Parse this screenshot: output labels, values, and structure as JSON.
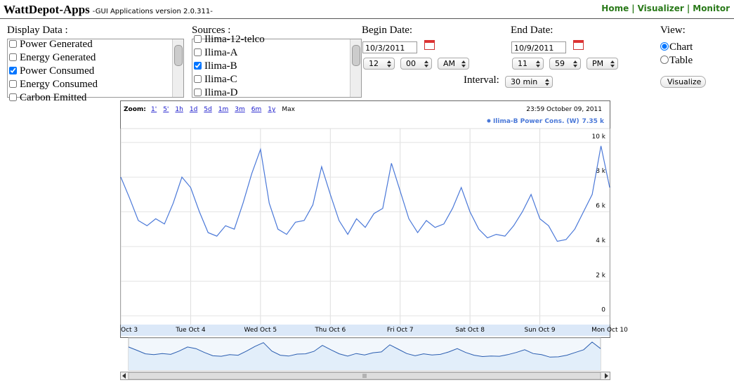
{
  "header": {
    "title": "WattDepot-Apps",
    "subtitle": "-GUI Applications version 2.0.311-",
    "links": [
      "Home",
      "Visualizer",
      "Monitor"
    ],
    "separator": "|"
  },
  "display_data": {
    "label": "Display Data :",
    "items": [
      "Power Generated",
      "Energy Generated",
      "Power Consumed",
      "Energy Consumed",
      "Carbon Emitted"
    ],
    "checked": [
      false,
      false,
      true,
      false,
      false
    ]
  },
  "sources": {
    "label": "Sources :",
    "items": [
      "Ilima-12-telco",
      "Ilima-A",
      "Ilima-B",
      "Ilima-C",
      "Ilima-D"
    ],
    "checked": [
      false,
      false,
      true,
      false,
      false
    ]
  },
  "begin_date": {
    "label": "Begin Date:",
    "date": "10/3/2011",
    "hour": "12",
    "minute": "00",
    "ampm": "AM"
  },
  "end_date": {
    "label": "End Date:",
    "date": "10/9/2011",
    "hour": "11",
    "minute": "59",
    "ampm": "PM"
  },
  "interval": {
    "label": "Interval:",
    "value": "30 min"
  },
  "view": {
    "label": "View:",
    "options": [
      "Chart",
      "Table"
    ],
    "selected": 0,
    "button": "Visualize"
  },
  "zoom": {
    "label": "Zoom:",
    "options": [
      "1'",
      "5'",
      "1h",
      "1d",
      "5d",
      "1m",
      "3m",
      "6m",
      "1y",
      "Max"
    ]
  },
  "timestamp": "23:59 October 09, 2011",
  "chart_data": {
    "type": "line",
    "current_label": "7.35 k",
    "x": [
      0,
      0.125,
      0.25,
      0.375,
      0.5,
      0.625,
      0.75,
      0.875,
      1,
      1.125,
      1.25,
      1.375,
      1.5,
      1.625,
      1.75,
      1.875,
      2,
      2.125,
      2.25,
      2.375,
      2.5,
      2.625,
      2.75,
      2.875,
      3,
      3.125,
      3.25,
      3.375,
      3.5,
      3.625,
      3.75,
      3.875,
      4,
      4.125,
      4.25,
      4.375,
      4.5,
      4.625,
      4.75,
      4.875,
      5,
      5.125,
      5.25,
      5.375,
      5.5,
      5.625,
      5.75,
      5.875,
      6,
      6.125,
      6.25,
      6.375,
      6.5,
      6.625,
      6.75,
      6.875,
      7
    ],
    "series": [
      {
        "name": "Ilima-B Power Cons. (W)",
        "color": "#4a78d8",
        "values": [
          8000,
          6800,
          5500,
          5200,
          5600,
          5300,
          6500,
          8000,
          7400,
          6000,
          4800,
          4600,
          5200,
          5000,
          6500,
          8200,
          9600,
          6500,
          5000,
          4700,
          5400,
          5500,
          6400,
          8600,
          7000,
          5500,
          4700,
          5600,
          5100,
          5900,
          6200,
          8800,
          7200,
          5600,
          4800,
          5500,
          5100,
          5300,
          6200,
          7400,
          6000,
          5000,
          4500,
          4700,
          4600,
          5200,
          6000,
          7000,
          5600,
          5200,
          4300,
          4400,
          5000,
          6000,
          7000,
          9800,
          7400
        ]
      }
    ],
    "xlim": [
      0,
      7
    ],
    "xticks": [
      {
        "value": 0,
        "label": "Oct 3"
      },
      {
        "value": 1,
        "label": "Tue Oct 4"
      },
      {
        "value": 2,
        "label": "Wed Oct 5"
      },
      {
        "value": 3,
        "label": "Thu Oct 6"
      },
      {
        "value": 4,
        "label": "Fri Oct 7"
      },
      {
        "value": 5,
        "label": "Sat Oct 8"
      },
      {
        "value": 6,
        "label": "Sun Oct 9"
      },
      {
        "value": 7,
        "label": "Mon Oct 10"
      }
    ],
    "ylim": [
      -500,
      10800
    ],
    "yticks": [
      0,
      {
        "value": 2000,
        "label": "2 k"
      },
      {
        "value": 4000,
        "label": "4 k"
      },
      {
        "value": 6000,
        "label": "6 k"
      },
      {
        "value": 8000,
        "label": "8 k"
      },
      {
        "value": 10000,
        "label": "10 k"
      }
    ],
    "grid": true
  }
}
